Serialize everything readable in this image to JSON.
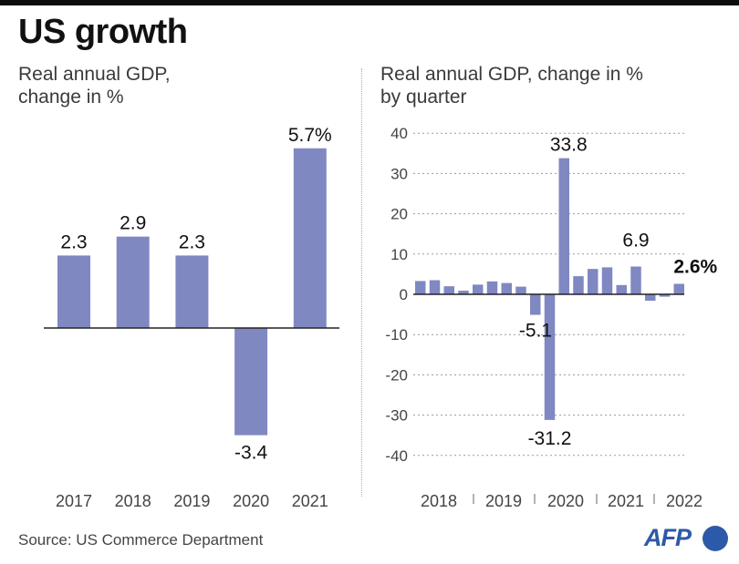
{
  "header": {
    "title": "US growth"
  },
  "source": "Source: US Commerce Department",
  "logo": "AFP",
  "colors": {
    "bar": "#8088c2",
    "axis": "#222222",
    "grid": "#9a9a9a",
    "logo": "#2d5aa8"
  },
  "chart_data": [
    {
      "type": "bar",
      "title": "Real annual GDP, change in %",
      "subtitle_lines": [
        "Real annual GDP,",
        "change in %"
      ],
      "categories": [
        "2017",
        "2018",
        "2019",
        "2020",
        "2021"
      ],
      "values": [
        2.3,
        2.9,
        2.3,
        -3.4,
        5.7
      ],
      "data_labels": [
        "2.3",
        "2.9",
        "2.3",
        "-3.4",
        "5.7%"
      ],
      "xlabel": "",
      "ylabel": "",
      "ylim": [
        -3.4,
        5.7
      ],
      "grid": false,
      "legend": "none"
    },
    {
      "type": "bar",
      "title": "Real annual GDP, change in % by quarter",
      "subtitle_lines": [
        "Real annual GDP, change in %",
        "by quarter"
      ],
      "categories": [
        "2018 Q1",
        "2018 Q2",
        "2018 Q3",
        "2018 Q4",
        "2019 Q1",
        "2019 Q2",
        "2019 Q3",
        "2019 Q4",
        "2020 Q1",
        "2020 Q2",
        "2020 Q3",
        "2020 Q4",
        "2021 Q1",
        "2021 Q2",
        "2021 Q3",
        "2021 Q4",
        "2022 Q1",
        "2022 Q2",
        "2022 Q3"
      ],
      "values": [
        3.3,
        3.5,
        2.0,
        0.9,
        2.4,
        3.2,
        2.8,
        1.9,
        -5.1,
        -31.2,
        33.8,
        4.5,
        6.3,
        6.7,
        2.3,
        6.9,
        -1.6,
        -0.6,
        2.6
      ],
      "annotations": [
        {
          "index": 8,
          "label": "-5.1",
          "bold": false
        },
        {
          "index": 9,
          "label": "-31.2",
          "bold": false
        },
        {
          "index": 10,
          "label": "33.8",
          "bold": false
        },
        {
          "index": 15,
          "label": "6.9",
          "bold": false
        },
        {
          "index": 18,
          "label": "2.6%",
          "bold": true
        }
      ],
      "year_labels": [
        "2018",
        "2019",
        "2020",
        "2021",
        "2022"
      ],
      "yticks": [
        40,
        30,
        20,
        10,
        0,
        -10,
        -20,
        -30,
        -40
      ],
      "ylim": [
        -40,
        40
      ],
      "xlabel": "",
      "ylabel": "",
      "grid": true,
      "legend": "none"
    }
  ]
}
